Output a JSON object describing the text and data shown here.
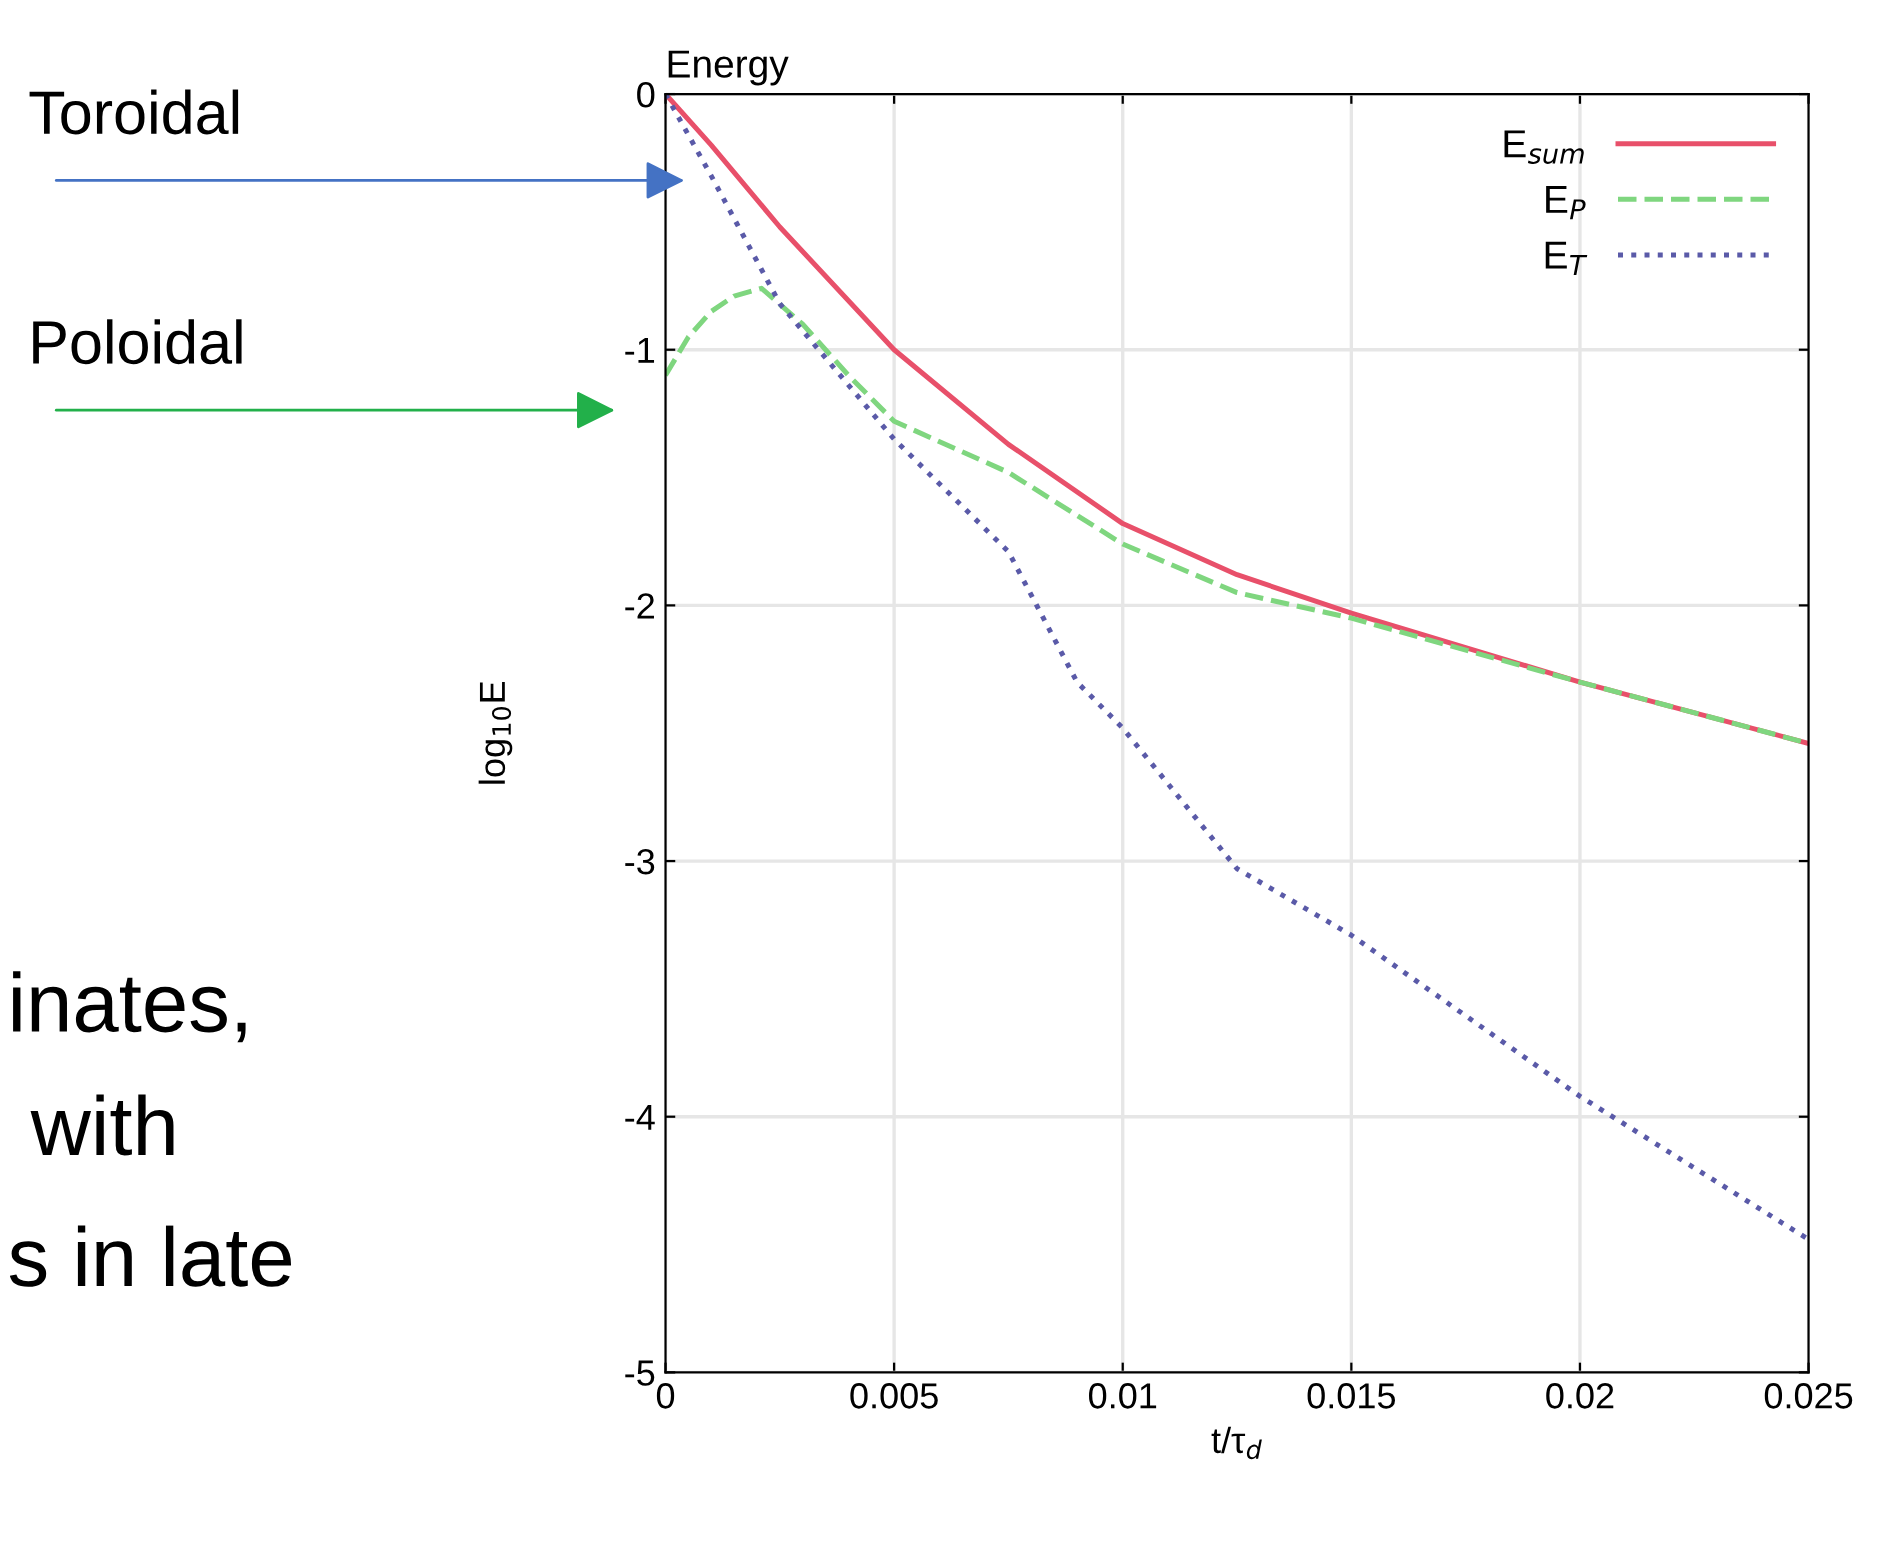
{
  "chart_data": {
    "type": "line",
    "title": "Energy",
    "xlabel": "t/τ$_{d}$",
    "ylabel": "log$_{10}$E",
    "xlim": [
      0,
      0.025
    ],
    "xticks": [
      0,
      0.005,
      0.01,
      0.015,
      0.02,
      0.025
    ],
    "ylim": [
      -5,
      0
    ],
    "yticks": [
      -5,
      -4,
      -3,
      -2,
      -1,
      0
    ],
    "grid": true,
    "legend": "top right",
    "series": [
      {
        "name": "E$_{sum}$",
        "color": "#e8506a",
        "line_style": "solid",
        "x": [
          0,
          0.001,
          0.0025,
          0.005,
          0.0075,
          0.01,
          0.0125,
          0.015,
          0.02,
          0.025
        ],
        "values": [
          0,
          -0.2,
          -0.52,
          -1.0,
          -1.37,
          -1.68,
          -1.88,
          -2.03,
          -2.3,
          -2.54
        ]
      },
      {
        "name": "E$_{P}$",
        "color": "#7fd67f",
        "line_style": "dashed",
        "x": [
          0,
          0.0005,
          0.001,
          0.0015,
          0.0021,
          0.003,
          0.004,
          0.005,
          0.0075,
          0.01,
          0.0125,
          0.015,
          0.02,
          0.025
        ],
        "values": [
          -1.1,
          -0.95,
          -0.85,
          -0.79,
          -0.76,
          -0.9,
          -1.1,
          -1.28,
          -1.48,
          -1.76,
          -1.95,
          -2.05,
          -2.3,
          -2.54
        ]
      },
      {
        "name": "E$_{T}$",
        "color": "#5a5aa8",
        "line_style": "dotted",
        "x": [
          0,
          0.001,
          0.0025,
          0.005,
          0.0075,
          0.009,
          0.01,
          0.0125,
          0.015,
          0.02,
          0.025
        ],
        "values": [
          0,
          -0.32,
          -0.82,
          -1.35,
          -1.79,
          -2.3,
          -2.48,
          -3.03,
          -3.29,
          -3.92,
          -4.48
        ]
      }
    ],
    "annotations": [
      "Toroidal",
      "Poloidal",
      "inates,",
      " with",
      "s in late"
    ]
  }
}
